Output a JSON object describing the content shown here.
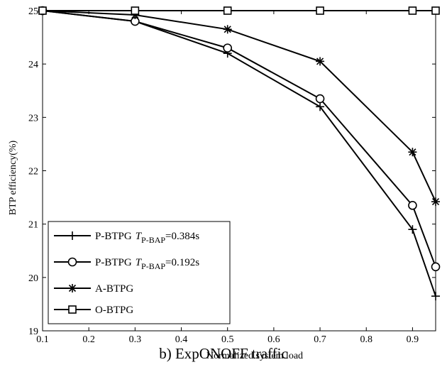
{
  "caption": "b) ExpONOFF traffic",
  "chart_data": {
    "type": "line",
    "xlabel": "Normalized system load",
    "ylabel": "BTP efficiency(%)",
    "xlim": [
      0.1,
      0.95
    ],
    "ylim": [
      19,
      25
    ],
    "x_ticks": [
      "0.1",
      "0.2",
      "0.3",
      "0.4",
      "0.5",
      "0.6",
      "0.7",
      "0.8",
      "0.9"
    ],
    "y_ticks": [
      "19",
      "20",
      "21",
      "22",
      "23",
      "24",
      "25"
    ],
    "grid": false,
    "legend_position": "bottom-left",
    "series": [
      {
        "name": "P-BTPG",
        "label_param": "T",
        "label_sub": "P-BAP",
        "label_value": "=0.384s",
        "marker": "plus",
        "x": [
          0.1,
          0.3,
          0.5,
          0.7,
          0.9,
          0.95
        ],
        "y": [
          25.0,
          24.8,
          24.2,
          23.2,
          20.9,
          19.65
        ]
      },
      {
        "name": "P-BTPG",
        "label_param": "T",
        "label_sub": "P-BAP",
        "label_value": "=0.192s",
        "marker": "circle",
        "x": [
          0.1,
          0.3,
          0.5,
          0.7,
          0.9,
          0.95
        ],
        "y": [
          25.0,
          24.8,
          24.3,
          23.35,
          21.35,
          20.2
        ]
      },
      {
        "name": "A-BTPG",
        "marker": "star",
        "x": [
          0.1,
          0.3,
          0.5,
          0.7,
          0.9,
          0.95
        ],
        "y": [
          25.0,
          24.92,
          24.65,
          24.05,
          22.35,
          21.42
        ]
      },
      {
        "name": "O-BTPG",
        "marker": "square",
        "x": [
          0.1,
          0.3,
          0.5,
          0.7,
          0.9,
          0.95
        ],
        "y": [
          25.0,
          25.0,
          25.0,
          25.0,
          25.0,
          25.0
        ]
      }
    ]
  }
}
